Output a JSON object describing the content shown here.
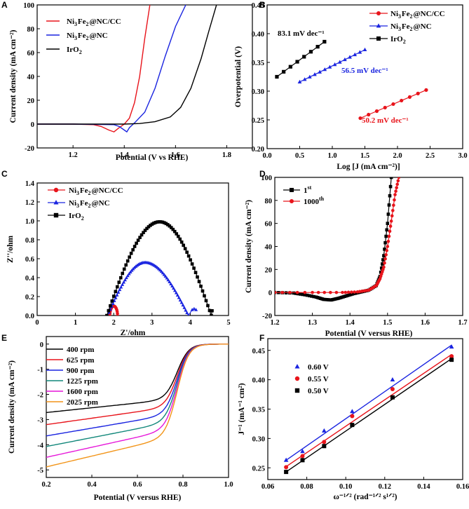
{
  "chart_data": [
    {
      "panel": "A",
      "type": "line",
      "xlabel": "Potential (V vs RHE)",
      "ylabel": "Current density (mA cm⁻²)",
      "xlim": [
        1.06,
        1.9
      ],
      "ylim": [
        -20,
        100
      ],
      "xticks": [
        1.2,
        1.4,
        1.6,
        1.8
      ],
      "yticks": [
        -20,
        0,
        20,
        40,
        60,
        80,
        100
      ],
      "legend_position": "top-left",
      "series": [
        {
          "name": "Ni3Fe2@NC/CC",
          "color": "#e8141b",
          "x": [
            1.06,
            1.2,
            1.28,
            1.31,
            1.34,
            1.36,
            1.38,
            1.4,
            1.42,
            1.44,
            1.46,
            1.48,
            1.5
          ],
          "y": [
            0,
            0,
            -0.5,
            -2,
            -5,
            -6.5,
            -3,
            0,
            5,
            18,
            40,
            72,
            100
          ]
        },
        {
          "name": "Ni3Fe2@NC",
          "color": "#1a24e0",
          "x": [
            1.06,
            1.2,
            1.36,
            1.38,
            1.4,
            1.41,
            1.42,
            1.44,
            1.48,
            1.52,
            1.56,
            1.6,
            1.64
          ],
          "y": [
            0,
            0,
            -0.5,
            -2,
            -5,
            -6.5,
            -3,
            1,
            10,
            30,
            57,
            82,
            100
          ]
        },
        {
          "name": "IrO2",
          "color": "#000000",
          "x": [
            1.06,
            1.4,
            1.46,
            1.52,
            1.58,
            1.62,
            1.66,
            1.7,
            1.73,
            1.76
          ],
          "y": [
            0,
            0,
            0.5,
            2,
            6,
            14,
            30,
            55,
            78,
            100
          ]
        }
      ]
    },
    {
      "panel": "B",
      "type": "line",
      "xlabel": "Log [J (mA cm⁻²)]",
      "ylabel": "Overpotential (V)",
      "xlim": [
        0,
        3
      ],
      "ylim": [
        0.2,
        0.45
      ],
      "xticks": [
        0.0,
        0.5,
        1.0,
        1.5,
        2.0,
        2.5,
        3.0
      ],
      "yticks": [
        0.2,
        0.25,
        0.3,
        0.35,
        0.4,
        0.45
      ],
      "legend_position": "top-right",
      "series": [
        {
          "name": "Ni3Fe2@NC/CC",
          "color": "#e8141b",
          "marker": "circle",
          "x": [
            1.43,
            2.44
          ],
          "y": [
            0.253,
            0.302
          ],
          "npoints": 9
        },
        {
          "name": "Ni3Fe2@NC",
          "color": "#1a24e0",
          "marker": "triangle",
          "x": [
            0.5,
            1.5
          ],
          "y": [
            0.316,
            0.372
          ],
          "npoints": 14
        },
        {
          "name": "IrO2",
          "color": "#000000",
          "marker": "square",
          "x": [
            0.15,
            0.88
          ],
          "y": [
            0.325,
            0.386
          ],
          "npoints": 8
        }
      ],
      "annotations": [
        "83.1 mV dec⁻¹",
        "56.5 mV dec⁻¹",
        "50.2 mV dec⁻¹"
      ]
    },
    {
      "panel": "C",
      "type": "scatter",
      "xlabel": "Z'/ohm",
      "ylabel": "Z''/ohm",
      "xlim": [
        0,
        5
      ],
      "ylim": [
        0,
        1.4
      ],
      "xticks": [
        0,
        1,
        2,
        3,
        4,
        5
      ],
      "yticks": [
        0.0,
        0.2,
        0.4,
        0.6,
        0.8,
        1.0,
        1.2,
        1.4
      ],
      "legend_position": "top-left",
      "series": [
        {
          "name": "Ni3Fe2@NC/CC",
          "color": "#e8141b",
          "marker": "circle",
          "center": 2.0,
          "radius": 0.1,
          "height": 0.1
        },
        {
          "name": "Ni3Fe2@NC",
          "color": "#1a24e0",
          "marker": "triangle",
          "start": 1.84,
          "peak_x": 2.82,
          "peak_y": 0.56,
          "end": 3.95,
          "tail": [
            [
              4.05,
              0.06
            ],
            [
              4.1,
              0.07
            ],
            [
              4.15,
              0.06
            ]
          ]
        },
        {
          "name": "IrO2",
          "color": "#000000",
          "marker": "square",
          "start": 1.82,
          "peak_x": 3.2,
          "peak_y": 0.99,
          "end": 4.55,
          "tail": [
            [
              4.57,
              0.05
            ]
          ]
        }
      ]
    },
    {
      "panel": "D",
      "type": "line",
      "xlabel": "Potential (V versus RHE)",
      "ylabel": "Current density (mA cm⁻²)",
      "xlim": [
        1.2,
        1.7
      ],
      "ylim": [
        -20,
        100
      ],
      "xticks": [
        1.2,
        1.3,
        1.4,
        1.5,
        1.6,
        1.7
      ],
      "yticks": [
        -20,
        0,
        20,
        40,
        60,
        80,
        100
      ],
      "legend_position": "top-left",
      "series": [
        {
          "name": "1st",
          "label_main": "1",
          "label_sup": "st",
          "color": "#000000",
          "marker": "square",
          "x": [
            1.2,
            1.25,
            1.28,
            1.31,
            1.33,
            1.35,
            1.37,
            1.39,
            1.41,
            1.43,
            1.45,
            1.47,
            1.48,
            1.49,
            1.5,
            1.51
          ],
          "y": [
            0,
            -0.5,
            -2,
            -4,
            -6,
            -6.5,
            -5,
            -3,
            -1,
            0.5,
            2,
            6,
            14,
            32,
            60,
            100
          ]
        },
        {
          "name": "1000th",
          "label_main": "1000",
          "label_sup": "th",
          "color": "#e8141b",
          "marker": "circle",
          "x": [
            1.2,
            1.3,
            1.38,
            1.42,
            1.45,
            1.47,
            1.48,
            1.49,
            1.5,
            1.51,
            1.52,
            1.53
          ],
          "y": [
            0,
            0,
            0,
            0.5,
            2,
            6,
            12,
            22,
            40,
            62,
            85,
            100
          ]
        }
      ]
    },
    {
      "panel": "E",
      "type": "line",
      "xlabel": "Potential (V versus RHE)",
      "ylabel": "Current density (mA cm⁻²)",
      "xlim": [
        0.2,
        1.0
      ],
      "ylim": [
        -5.3,
        0.3
      ],
      "xticks": [
        0.2,
        0.4,
        0.6,
        0.8,
        1.0
      ],
      "yticks": [
        0,
        -1,
        -2,
        -3,
        -4,
        -5
      ],
      "legend_position": "top-left",
      "series": [
        {
          "name": "400 rpm",
          "color": "#000000",
          "plateau": -2.72,
          "knee": -2.2
        },
        {
          "name": "625 rpm",
          "color": "#e8141b",
          "plateau": -3.2,
          "knee": -2.5
        },
        {
          "name": "900 rpm",
          "color": "#1a24e0",
          "plateau": -3.65,
          "knee": -2.8
        },
        {
          "name": "1225 rpm",
          "color": "#11877a",
          "plateau": -4.07,
          "knee": -3.1
        },
        {
          "name": "1600 rpm",
          "color": "#e617d9",
          "plateau": -4.5,
          "knee": -3.4
        },
        {
          "name": "2025 rpm",
          "color": "#f29418",
          "plateau": -4.88,
          "knee": -3.7
        }
      ]
    },
    {
      "panel": "F",
      "type": "scatter",
      "xlabel": "ω⁻¹ᐟ² (rad⁻¹ᐟ² s¹ᐟ²)",
      "ylabel": "J⁻¹ (mA⁻¹ cm²)",
      "xlim": [
        0.06,
        0.16
      ],
      "ylim": [
        0.23,
        0.47
      ],
      "xticks": [
        0.06,
        0.08,
        0.1,
        0.12,
        0.14,
        0.16
      ],
      "yticks": [
        0.25,
        0.3,
        0.35,
        0.4,
        0.45
      ],
      "legend_position": "top-left",
      "x": [
        0.0694,
        0.0778,
        0.0889,
        0.1033,
        0.124,
        0.1543
      ],
      "series": [
        {
          "name": "0.60 V",
          "color": "#1a24e0",
          "marker": "triangle",
          "y": [
            0.263,
            0.278,
            0.313,
            0.346,
            0.4,
            0.456
          ],
          "fit": [
            [
              0.0694,
              0.263
            ],
            [
              0.1543,
              0.459
            ]
          ]
        },
        {
          "name": "0.55 V",
          "color": "#e8141b",
          "marker": "circle",
          "y": [
            0.251,
            0.27,
            0.294,
            0.338,
            0.384,
            0.44
          ],
          "fit": [
            [
              0.0694,
              0.252
            ],
            [
              0.1543,
              0.443
            ]
          ]
        },
        {
          "name": "0.50 V",
          "color": "#000000",
          "marker": "square",
          "y": [
            0.243,
            0.263,
            0.287,
            0.323,
            0.37,
            0.434
          ],
          "fit": [
            [
              0.0694,
              0.243
            ],
            [
              0.1543,
              0.436
            ]
          ]
        }
      ]
    }
  ]
}
